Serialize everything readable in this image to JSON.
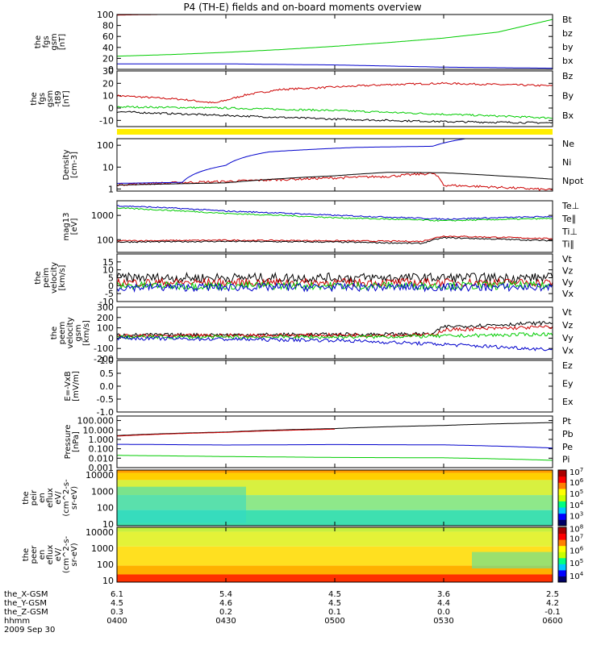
{
  "title": "P4 (TH-E) fields and on-board moments overview",
  "colors": {
    "black": "#000000",
    "red": "#cc0000",
    "green": "#00dd00",
    "blue": "#0000cc",
    "yellow": "#ffee00",
    "bg": "#ffffff"
  },
  "chart_data": [
    {
      "type": "line",
      "ylabel": [
        "the",
        "fgs",
        "gsm",
        "[nT]"
      ],
      "ylim": [
        0,
        100
      ],
      "ticks": [
        {
          "v": 0,
          "label": "0"
        },
        {
          "v": 20,
          "label": "20"
        },
        {
          "v": 40,
          "label": "40"
        },
        {
          "v": 60,
          "label": "60"
        },
        {
          "v": 80,
          "label": "80"
        },
        {
          "v": 100,
          "label": "100"
        }
      ],
      "series": [
        {
          "name": "Bt",
          "color": "#000000",
          "x": [],
          "y": []
        },
        {
          "name": "bz",
          "color": "#cc0000",
          "x": [
            4.0,
            4.2,
            4.4,
            4.6
          ],
          "y": [
            99,
            100,
            101,
            102
          ]
        },
        {
          "name": "by",
          "color": "#00cc00",
          "x": [
            4.0,
            4.25,
            4.5,
            4.75,
            5.0,
            5.25,
            5.5,
            5.75,
            6.0
          ],
          "y": [
            24,
            27,
            31,
            36,
            42,
            49,
            57,
            68,
            91
          ]
        },
        {
          "name": "bx",
          "color": "#0000cc",
          "x": [
            4.0,
            4.5,
            5.0,
            5.25,
            5.5,
            5.75,
            6.0
          ],
          "y": [
            10,
            10,
            8,
            6,
            4,
            3,
            2
          ]
        }
      ]
    },
    {
      "type": "line",
      "ylabel": [
        "the",
        "fgs",
        "gsm",
        "-t89",
        "[nT]"
      ],
      "ylim": [
        -15,
        30
      ],
      "ticks": [
        {
          "v": -10,
          "label": "-10"
        },
        {
          "v": 0,
          "label": "0"
        },
        {
          "v": 10,
          "label": "10"
        },
        {
          "v": 20,
          "label": "20"
        },
        {
          "v": 30,
          "label": "30"
        }
      ],
      "series": [
        {
          "name": "Bz",
          "color": "#cc0000",
          "x": [
            4.0,
            4.3,
            4.45,
            4.6,
            4.75,
            5.0,
            5.25,
            5.5,
            5.75,
            6.0
          ],
          "y": [
            10,
            7,
            4,
            11,
            15,
            17,
            19,
            20,
            19,
            18
          ]
        },
        {
          "name": "By",
          "color": "#00cc00",
          "x": [
            4.0,
            4.5,
            5.0,
            5.5,
            6.0
          ],
          "y": [
            1,
            0,
            -2,
            -5,
            -8
          ]
        },
        {
          "name": "Bx",
          "color": "#000000",
          "x": [
            4.0,
            4.5,
            5.0,
            5.5,
            6.0
          ],
          "y": [
            -3,
            -6,
            -9,
            -11,
            -12
          ]
        }
      ]
    },
    {
      "type": "line",
      "ylabel": [
        "Density",
        "[cm-3]"
      ],
      "ylim_log": [
        0.8,
        200
      ],
      "ticks": [
        {
          "v": 1,
          "label": "1"
        },
        {
          "v": 10,
          "label": "10"
        },
        {
          "v": 100,
          "label": "100"
        }
      ],
      "series": [
        {
          "name": "Ne",
          "color": "#cc0000",
          "x": [
            4.0,
            4.5,
            5.0,
            5.25,
            5.45,
            5.5,
            5.75,
            6.0
          ],
          "y": [
            1.6,
            2.2,
            3.2,
            3.8,
            5.2,
            1.5,
            1.2,
            0.9
          ]
        },
        {
          "name": "Ni",
          "color": "#000000",
          "x": [
            4.0,
            4.5,
            5.0,
            5.25,
            5.5,
            5.75,
            6.0
          ],
          "y": [
            1.5,
            1.9,
            4.0,
            5.8,
            5.5,
            4.0,
            2.8
          ]
        },
        {
          "name": "Npot",
          "color": "#0000cc",
          "x": [
            4.0,
            4.3,
            4.5,
            4.7,
            5.1,
            5.45,
            5.6
          ],
          "y": [
            1.8,
            2.0,
            12,
            50,
            80,
            90,
            200
          ]
        }
      ]
    },
    {
      "type": "line",
      "ylabel": [
        "mag13",
        "[eV]"
      ],
      "ylim_log": [
        30,
        4000
      ],
      "ticks": [
        {
          "v": 100,
          "label": "100"
        },
        {
          "v": 1000,
          "label": "1000"
        }
      ],
      "series": [
        {
          "name": "Te⊥",
          "color": "#cc0000",
          "x": [
            4.0,
            4.5,
            5.0,
            5.4,
            5.5,
            6.0
          ],
          "y": [
            90,
            95,
            90,
            85,
            140,
            110
          ]
        },
        {
          "name": "Te∥",
          "color": "#000000",
          "x": [
            4.0,
            4.5,
            5.0,
            5.4,
            5.5,
            6.0
          ],
          "y": [
            80,
            85,
            80,
            70,
            120,
            90
          ]
        },
        {
          "name": "Ti⊥",
          "color": "#0000cc",
          "x": [
            4.0,
            4.5,
            5.0,
            5.5,
            6.0
          ],
          "y": [
            2500,
            1500,
            1000,
            700,
            900
          ]
        },
        {
          "name": "Ti∥",
          "color": "#00cc00",
          "x": [
            4.0,
            4.5,
            5.0,
            5.5,
            6.0
          ],
          "y": [
            2000,
            1200,
            800,
            600,
            750
          ]
        }
      ]
    },
    {
      "type": "line",
      "ylabel": [
        "the",
        "peim",
        "velocity",
        "[km/s]"
      ],
      "ylim": [
        -10,
        20
      ],
      "ticks": [
        {
          "v": -10,
          "label": "-10"
        },
        {
          "v": -5,
          "label": "-5"
        },
        {
          "v": 0,
          "label": "0"
        },
        {
          "v": 5,
          "label": "5"
        },
        {
          "v": 10,
          "label": "10"
        },
        {
          "v": 15,
          "label": "15"
        }
      ],
      "series": [
        {
          "name": "Vt",
          "color": "#000000",
          "x": [
            4.0,
            6.0
          ],
          "y": [
            5,
            5
          ]
        },
        {
          "name": "Vz",
          "color": "#cc0000",
          "x": [
            4.0,
            6.0
          ],
          "y": [
            2,
            2
          ]
        },
        {
          "name": "Vy",
          "color": "#00cc00",
          "x": [
            4.0,
            6.0
          ],
          "y": [
            0,
            0
          ]
        },
        {
          "name": "Vx",
          "color": "#0000cc",
          "x": [
            4.0,
            6.0
          ],
          "y": [
            -1,
            -1
          ]
        }
      ]
    },
    {
      "type": "line",
      "ylabel": [
        "the",
        "peem",
        "velocity",
        "gsm",
        "[km/s]"
      ],
      "ylim": [
        -200,
        300
      ],
      "ticks": [
        {
          "v": -200,
          "label": "-200"
        },
        {
          "v": -100,
          "label": "-100"
        },
        {
          "v": 0,
          "label": "0"
        },
        {
          "v": 100,
          "label": "100"
        },
        {
          "v": 200,
          "label": "200"
        },
        {
          "v": 300,
          "label": "300"
        }
      ],
      "series": [
        {
          "name": "Vt",
          "color": "#000000",
          "x": [
            4.0,
            5.0,
            5.45,
            5.5,
            6.0
          ],
          "y": [
            30,
            35,
            40,
            110,
            150
          ]
        },
        {
          "name": "Vz",
          "color": "#cc0000",
          "x": [
            4.0,
            5.0,
            5.45,
            5.5,
            6.0
          ],
          "y": [
            20,
            30,
            30,
            80,
            110
          ]
        },
        {
          "name": "Vy",
          "color": "#00cc00",
          "x": [
            4.0,
            5.0,
            5.5,
            6.0
          ],
          "y": [
            10,
            10,
            20,
            40
          ]
        },
        {
          "name": "Vx",
          "color": "#0000cc",
          "x": [
            4.0,
            5.0,
            5.5,
            6.0
          ],
          "y": [
            0,
            -20,
            -60,
            -110
          ]
        }
      ]
    },
    {
      "type": "line",
      "ylabel": [
        "E=-VxB",
        "[mV/m]"
      ],
      "ylim": [
        -1,
        1
      ],
      "ticks": [
        {
          "v": -1,
          "label": "-1.0"
        },
        {
          "v": -0.5,
          "label": "-0.5"
        },
        {
          "v": 0,
          "label": "0.0"
        },
        {
          "v": 0.5,
          "label": "0.5"
        },
        {
          "v": 1,
          "label": "1.0"
        }
      ],
      "series": [
        {
          "name": "Ez",
          "color": "#cc0000",
          "x": [],
          "y": []
        },
        {
          "name": "Ey",
          "color": "#00cc00",
          "x": [],
          "y": []
        },
        {
          "name": "Ex",
          "color": "#0000cc",
          "x": [],
          "y": []
        }
      ]
    },
    {
      "type": "line",
      "ylabel": [
        "Pressure",
        "[nPa]"
      ],
      "ylim_log": [
        0.001,
        300
      ],
      "ticks": [
        {
          "v": 0.001,
          "label": "0.001"
        },
        {
          "v": 0.01,
          "label": "0.010"
        },
        {
          "v": 0.1,
          "label": "0.100"
        },
        {
          "v": 1,
          "label": "1.000"
        },
        {
          "v": 10,
          "label": "10.000"
        },
        {
          "v": 100,
          "label": "100.000"
        }
      ],
      "series": [
        {
          "name": "Pt",
          "color": "#000000",
          "x": [
            4.0,
            4.5,
            5.0,
            5.5,
            6.0
          ],
          "y": [
            2.5,
            6,
            14,
            30,
            60
          ]
        },
        {
          "name": "Pb",
          "color": "#cc0000",
          "x": [
            4.0,
            4.5,
            5.0
          ],
          "y": [
            2.2,
            5.5,
            12
          ]
        },
        {
          "name": "Pe",
          "color": "#00cc00",
          "x": [
            4.0,
            4.5,
            5.0,
            5.5,
            6.0
          ],
          "y": [
            0.02,
            0.015,
            0.012,
            0.011,
            0.006
          ]
        },
        {
          "name": "Pi",
          "color": "#0000cc",
          "x": [
            4.0,
            4.5,
            5.0,
            5.5,
            6.0
          ],
          "y": [
            0.3,
            0.25,
            0.28,
            0.26,
            0.12
          ]
        }
      ]
    },
    {
      "type": "heatmap",
      "ylabel": [
        "the",
        "peir",
        "en",
        "eflux",
        "eV/",
        "(cm^2-s-",
        "sr-eV)"
      ],
      "ylim_log": [
        8,
        20000
      ],
      "ticks": [
        {
          "v": 10,
          "label": "10"
        },
        {
          "v": 100,
          "label": "100"
        },
        {
          "v": 1000,
          "label": "1000"
        },
        {
          "v": 10000,
          "label": "10000"
        }
      ],
      "colorbar_ticks": [
        {
          "exp": "3",
          "frac": 0.18
        },
        {
          "exp": "4",
          "frac": 0.38
        },
        {
          "exp": "5",
          "frac": 0.58
        },
        {
          "exp": "6",
          "frac": 0.78
        },
        {
          "exp": "7",
          "frac": 0.97
        }
      ]
    },
    {
      "type": "heatmap",
      "ylabel": [
        "the",
        "peer",
        "en",
        "eflux",
        "eV/",
        "(cm^2-s-",
        "sr-eV)"
      ],
      "ylim_log": [
        8,
        20000
      ],
      "ticks": [
        {
          "v": 10,
          "label": "10"
        },
        {
          "v": 100,
          "label": "100"
        },
        {
          "v": 1000,
          "label": "1000"
        },
        {
          "v": 10000,
          "label": "10000"
        }
      ],
      "colorbar_ticks": [
        {
          "exp": "4",
          "frac": 0.12
        },
        {
          "exp": "5",
          "frac": 0.35
        },
        {
          "exp": "6",
          "frac": 0.58
        },
        {
          "exp": "7",
          "frac": 0.8
        },
        {
          "exp": "8",
          "frac": 0.98
        }
      ]
    }
  ],
  "xaxis": {
    "row_labels": [
      "the_X-GSM",
      "the_Y-GSM",
      "the_Z-GSM",
      "hhmm"
    ],
    "date": "2009 Sep 30",
    "columns": [
      {
        "x": 4.0,
        "values": [
          "6.1",
          "4.5",
          "0.3",
          "0400"
        ]
      },
      {
        "x": 4.5,
        "values": [
          "5.4",
          "4.6",
          "0.2",
          "0430"
        ]
      },
      {
        "x": 5.0,
        "values": [
          "4.5",
          "4.5",
          "0.1",
          "0500"
        ]
      },
      {
        "x": 5.5,
        "values": [
          "3.6",
          "4.4",
          "0.0",
          "0530"
        ]
      },
      {
        "x": 6.0,
        "values": [
          "2.5",
          "4.2",
          "-0.1",
          "0600"
        ]
      }
    ]
  }
}
